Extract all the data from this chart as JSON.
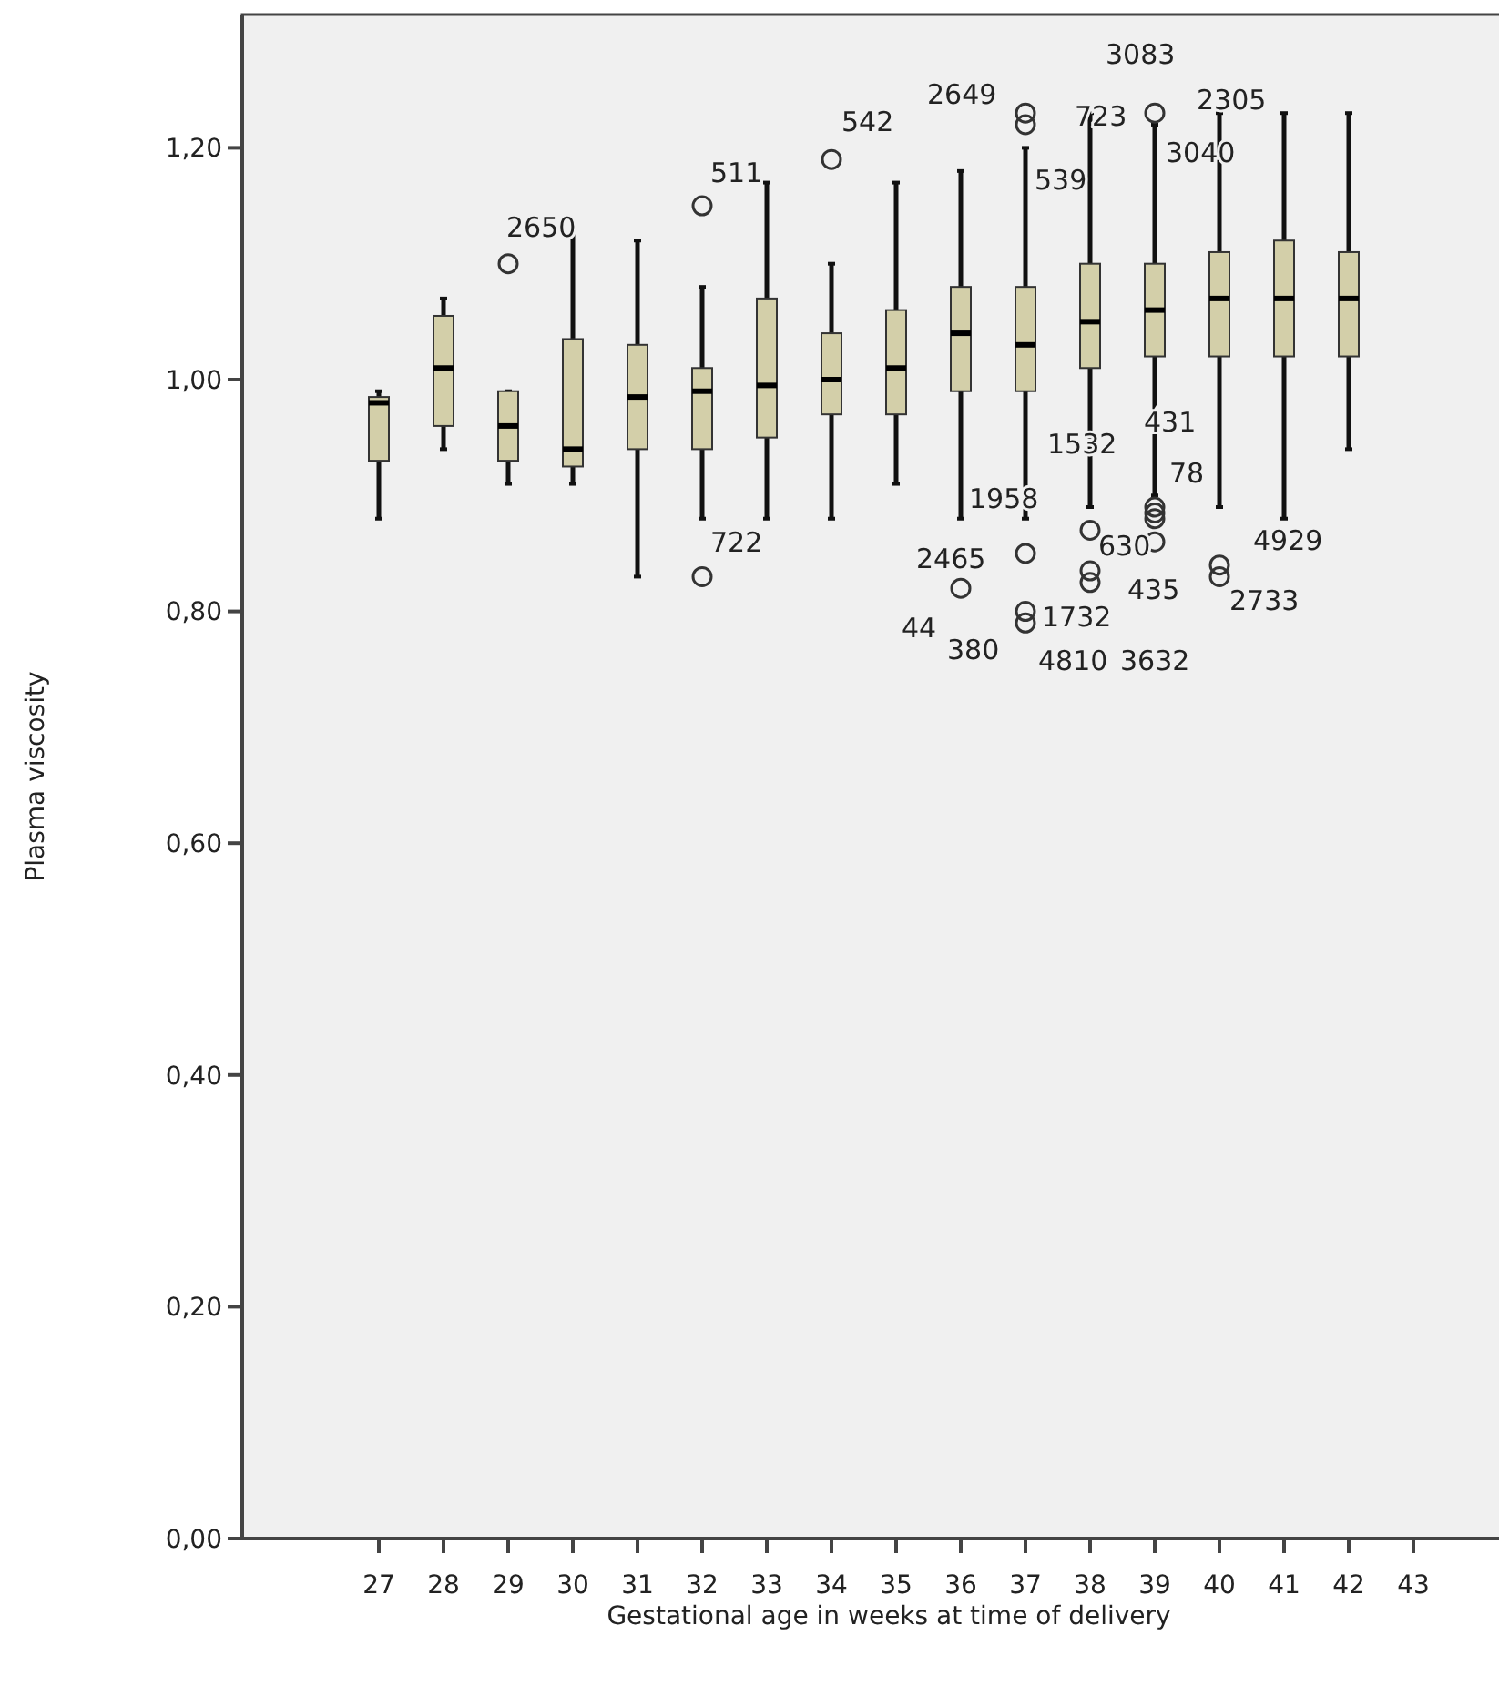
{
  "chart_data": {
    "type": "box",
    "xlabel": "Gestational age in weeks at time of delivery",
    "ylabel": "Plasma viscosity",
    "color": "#d3cfa9",
    "categories": [
      "27",
      "28",
      "29",
      "30",
      "31",
      "32",
      "33",
      "34",
      "35",
      "36",
      "37",
      "38",
      "39",
      "40",
      "41",
      "42",
      "43"
    ],
    "boxes": [
      {
        "low": 0.88,
        "q1": 0.93,
        "median": 0.98,
        "q3": 0.985,
        "high": 0.99
      },
      {
        "low": 0.94,
        "q1": 0.96,
        "median": 1.01,
        "q3": 1.055,
        "high": 1.07
      },
      {
        "low": 0.91,
        "q1": 0.93,
        "median": 0.96,
        "q3": 0.99,
        "high": 0.99,
        "outliers": [
          1.1
        ]
      },
      {
        "low": 0.91,
        "q1": 0.925,
        "median": 0.94,
        "q3": 1.035,
        "high": 1.135
      },
      {
        "low": 0.83,
        "q1": 0.94,
        "median": 0.985,
        "q3": 1.03,
        "high": 1.12
      },
      {
        "low": 0.88,
        "q1": 0.94,
        "median": 0.99,
        "q3": 1.01,
        "high": 1.08,
        "outliers": [
          1.15,
          0.83
        ]
      },
      {
        "low": 0.88,
        "q1": 0.95,
        "median": 0.995,
        "q3": 1.07,
        "high": 1.17
      },
      {
        "low": 0.88,
        "q1": 0.97,
        "median": 1.0,
        "q3": 1.04,
        "high": 1.1,
        "outliers": [
          1.19
        ]
      },
      {
        "low": 0.91,
        "q1": 0.97,
        "median": 1.01,
        "q3": 1.06,
        "high": 1.17
      },
      {
        "low": 0.88,
        "q1": 0.99,
        "median": 1.04,
        "q3": 1.08,
        "high": 1.18,
        "outliers": [
          0.82
        ]
      },
      {
        "low": 0.88,
        "q1": 0.99,
        "median": 1.03,
        "q3": 1.08,
        "high": 1.2,
        "outliers": [
          1.23,
          1.22,
          0.85,
          0.8,
          0.79
        ]
      },
      {
        "low": 0.89,
        "q1": 1.01,
        "median": 1.05,
        "q3": 1.1,
        "high": 1.23,
        "outliers": [
          0.87,
          0.835,
          0.825
        ]
      },
      {
        "low": 0.9,
        "q1": 1.02,
        "median": 1.06,
        "q3": 1.1,
        "high": 1.22,
        "outliers": [
          1.23,
          0.89,
          0.885,
          0.88,
          0.86
        ]
      },
      {
        "low": 0.89,
        "q1": 1.02,
        "median": 1.07,
        "q3": 1.11,
        "high": 1.23,
        "outliers": [
          0.84,
          0.83
        ]
      },
      {
        "low": 0.88,
        "q1": 1.02,
        "median": 1.07,
        "q3": 1.12,
        "high": 1.23
      },
      {
        "low": 0.94,
        "q1": 1.02,
        "median": 1.07,
        "q3": 1.11,
        "high": 1.23
      },
      null
    ],
    "ylim": [
      0,
      1.315
    ],
    "yticks": [
      {
        "value": 0,
        "label": "0,00"
      },
      {
        "value": 0.2,
        "label": "0,20"
      },
      {
        "value": 0.4,
        "label": "0,40"
      },
      {
        "value": 0.6,
        "label": "0,60"
      },
      {
        "value": 0.8,
        "label": "0,80"
      },
      {
        "value": 1.0,
        "label": "1,00"
      },
      {
        "value": 1.2,
        "label": "1,20"
      }
    ],
    "grid": false,
    "annotations": [
      "2650",
      "511",
      "722",
      "542",
      "2649",
      "539",
      "1958",
      "2465",
      "44",
      "1732",
      "380",
      "1532",
      "630",
      "4810",
      "3083",
      "723",
      "3040",
      "431",
      "78",
      "435",
      "3632",
      "2305",
      "2733",
      "4929"
    ]
  }
}
